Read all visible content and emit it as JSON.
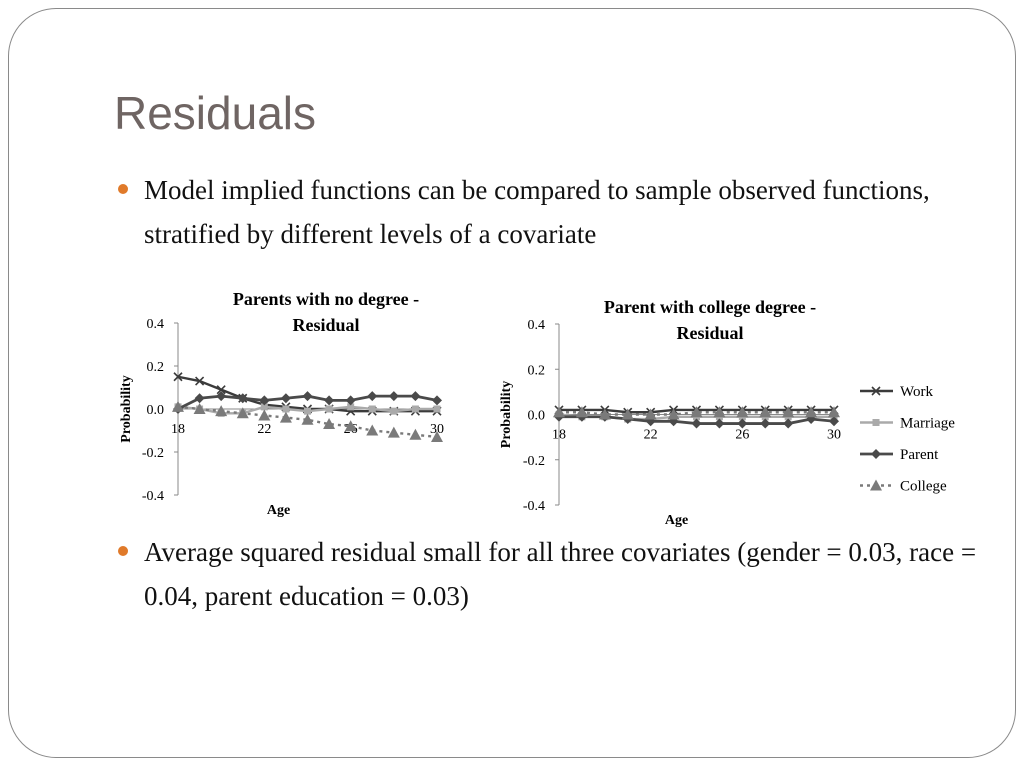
{
  "slide": {
    "title": "Residuals",
    "bullets": [
      "Model implied functions can be compared to sample observed functions, stratified by different levels of a covariate",
      "Average squared residual small for all three covariates (gender = 0.03, race = 0.04, parent education = 0.03)"
    ],
    "accent_color": "#e07a2a",
    "title_color": "#6f6563"
  },
  "chart_data": [
    {
      "type": "line",
      "title": "Parents with no degree - Residual",
      "title_lines": [
        "Parents with no degree -",
        "Residual"
      ],
      "xlabel": "Age",
      "ylabel": "Probability",
      "ylim": [
        -0.4,
        0.4
      ],
      "yticks": [
        "0.4",
        "0.2",
        "0.0",
        "-0.2",
        "-0.4"
      ],
      "xticks": [
        "18",
        "22",
        "26",
        "30"
      ],
      "x": [
        18,
        19,
        20,
        21,
        22,
        23,
        24,
        25,
        26,
        27,
        28,
        29,
        30
      ],
      "series": [
        {
          "name": "Work",
          "marker": "x",
          "values": [
            0.15,
            0.13,
            0.09,
            0.05,
            0.02,
            0.01,
            0.0,
            0.0,
            -0.01,
            -0.01,
            -0.01,
            -0.01,
            -0.01
          ]
        },
        {
          "name": "Marriage",
          "marker": "square",
          "values": [
            0.01,
            0.0,
            -0.02,
            -0.02,
            0.01,
            0.0,
            -0.01,
            0.0,
            0.01,
            0.0,
            -0.01,
            0.0,
            0.0
          ]
        },
        {
          "name": "Parent",
          "marker": "diamond",
          "values": [
            0.0,
            0.05,
            0.06,
            0.05,
            0.04,
            0.05,
            0.06,
            0.04,
            0.04,
            0.06,
            0.06,
            0.06,
            0.04
          ]
        },
        {
          "name": "College",
          "marker": "triangle",
          "values": [
            0.01,
            0.0,
            -0.01,
            -0.02,
            -0.03,
            -0.04,
            -0.05,
            -0.07,
            -0.08,
            -0.1,
            -0.11,
            -0.12,
            -0.13
          ]
        }
      ]
    },
    {
      "type": "line",
      "title": "Parent with college degree - Residual",
      "title_lines": [
        "Parent with college degree -",
        "Residual"
      ],
      "xlabel": "Age",
      "ylabel": "Probability",
      "ylim": [
        -0.4,
        0.4
      ],
      "yticks": [
        "0.4",
        "0.2",
        "0.0",
        "-0.2",
        "-0.4"
      ],
      "xticks": [
        "18",
        "22",
        "26",
        "30"
      ],
      "legend_position": "right",
      "x": [
        18,
        19,
        20,
        21,
        22,
        23,
        24,
        25,
        26,
        27,
        28,
        29,
        30
      ],
      "series": [
        {
          "name": "Work",
          "marker": "x",
          "values": [
            0.02,
            0.02,
            0.02,
            0.01,
            0.01,
            0.02,
            0.02,
            0.02,
            0.02,
            0.02,
            0.02,
            0.02,
            0.02
          ]
        },
        {
          "name": "Marriage",
          "marker": "square",
          "values": [
            0.0,
            -0.01,
            -0.01,
            -0.02,
            -0.02,
            -0.01,
            -0.01,
            -0.01,
            -0.01,
            -0.01,
            -0.01,
            -0.01,
            -0.01
          ]
        },
        {
          "name": "Parent",
          "marker": "diamond",
          "values": [
            -0.01,
            -0.01,
            -0.01,
            -0.02,
            -0.03,
            -0.03,
            -0.04,
            -0.04,
            -0.04,
            -0.04,
            -0.04,
            -0.02,
            -0.03
          ]
        },
        {
          "name": "College",
          "marker": "triangle",
          "values": [
            0.01,
            0.01,
            0.0,
            0.0,
            0.0,
            0.0,
            0.01,
            0.01,
            0.01,
            0.01,
            0.01,
            0.01,
            0.01
          ]
        }
      ]
    }
  ]
}
